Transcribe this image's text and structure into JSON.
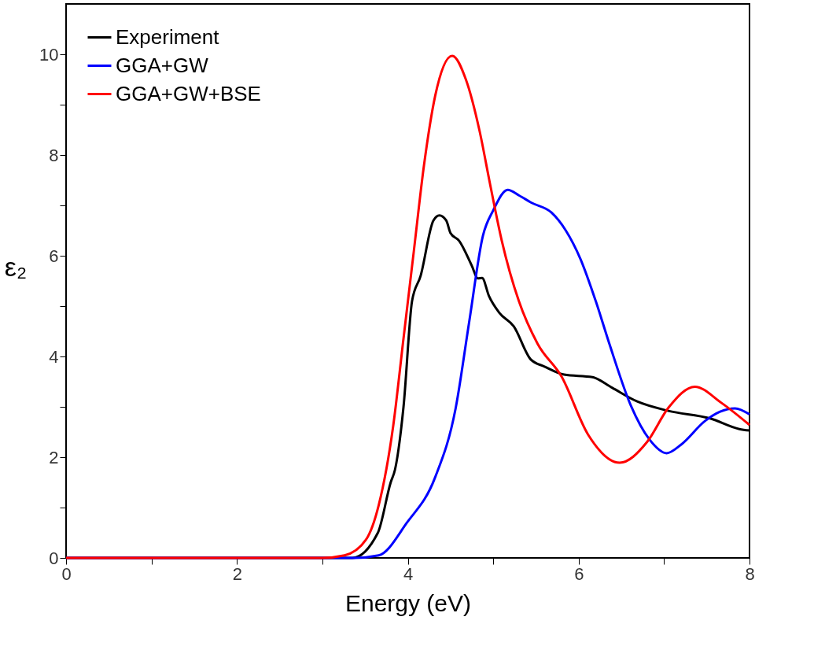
{
  "chart_data": {
    "type": "line",
    "xlabel": "Energy (eV)",
    "ylabel": "ε₂",
    "xlim": [
      0,
      8
    ],
    "ylim": [
      0,
      11
    ],
    "xticks": [
      0,
      {
        "value": 1,
        "label": null
      },
      2,
      {
        "value": 3,
        "label": null
      },
      4,
      {
        "value": 5,
        "label": null
      },
      6,
      {
        "value": 7,
        "label": null
      },
      8
    ],
    "yticks": [
      0,
      {
        "value": 1,
        "label": null
      },
      2,
      {
        "value": 3,
        "label": null
      },
      4,
      {
        "value": 5,
        "label": null
      },
      6,
      {
        "value": 7,
        "label": null
      },
      8,
      {
        "value": 9,
        "label": null
      },
      10
    ],
    "grid": false,
    "legend": "top left",
    "line_style": "solid",
    "marker": "none",
    "series": [
      {
        "name": "Experiment",
        "color": "#000000",
        "x": [
          0,
          3.35,
          3.65,
          3.8,
          3.85,
          3.95,
          4.05,
          4.15,
          4.3,
          4.37,
          4.45,
          4.5,
          4.6,
          4.75,
          4.82,
          4.87,
          4.95,
          5.07,
          5.24,
          5.44,
          5.6,
          5.83,
          6.16,
          6.39,
          6.68,
          7.05,
          7.54,
          7.88,
          8.0
        ],
        "values": [
          0,
          0,
          0.5,
          1.5,
          1.75,
          3.0,
          5.1,
          5.6,
          6.7,
          6.8,
          6.7,
          6.45,
          6.3,
          5.8,
          5.55,
          5.56,
          5.2,
          4.87,
          4.6,
          3.94,
          3.8,
          3.64,
          3.59,
          3.38,
          3.11,
          2.92,
          2.77,
          2.56,
          2.53
        ]
      },
      {
        "name": "GGA+GW",
        "color": "#0000ff",
        "x": [
          0,
          3.38,
          3.66,
          3.99,
          4.32,
          4.56,
          4.72,
          4.88,
          5.0,
          5.17,
          5.3,
          5.45,
          5.68,
          5.85,
          6.02,
          6.2,
          6.36,
          6.61,
          6.83,
          7.03,
          7.2,
          7.48,
          7.65,
          7.83,
          8.0
        ],
        "values": [
          0,
          0,
          0.05,
          0.7,
          1.6,
          2.97,
          4.7,
          6.4,
          6.9,
          7.31,
          7.2,
          7.05,
          6.86,
          6.5,
          5.94,
          5.1,
          4.25,
          3.03,
          2.35,
          2.08,
          2.25,
          2.72,
          2.9,
          2.97,
          2.85
        ]
      },
      {
        "name": "GGA+GW+BSE",
        "color": "#ff0000",
        "x": [
          0,
          3.0,
          3.26,
          3.51,
          3.66,
          3.83,
          3.95,
          4.07,
          4.19,
          4.32,
          4.52,
          4.68,
          4.84,
          4.96,
          5.1,
          5.3,
          5.52,
          5.8,
          6.11,
          6.48,
          6.8,
          7.05,
          7.36,
          7.67,
          8.0
        ],
        "values": [
          0,
          0,
          0.05,
          0.36,
          1.05,
          2.63,
          4.36,
          6.08,
          7.8,
          9.17,
          9.97,
          9.5,
          8.48,
          7.45,
          6.3,
          5.1,
          4.25,
          3.6,
          2.45,
          1.89,
          2.3,
          2.98,
          3.4,
          3.08,
          2.64
        ]
      }
    ]
  }
}
